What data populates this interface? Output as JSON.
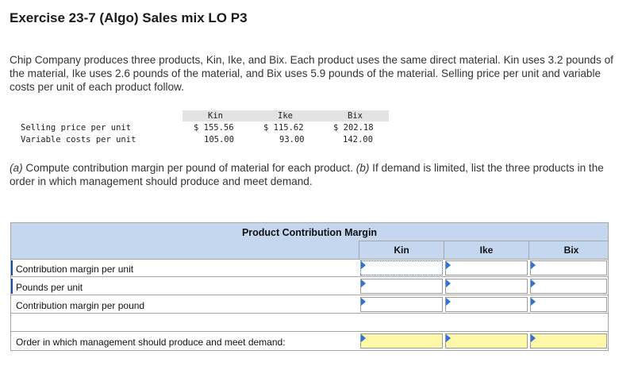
{
  "title": "Exercise 23-7 (Algo) Sales mix LO P3",
  "intro": "Chip Company produces three products, Kin, Ike, and Bix. Each product uses the same direct material. Kin uses 3.2 pounds of the material, Ike uses 2.6 pounds of the material, and Bix uses 5.9 pounds of the material. Selling price per unit and variable costs per unit of each product follow.",
  "data_table": {
    "headers": [
      "Kin",
      "Ike",
      "Bix"
    ],
    "rows": [
      {
        "label": "Selling price per unit",
        "values": [
          "$ 155.56",
          "$ 115.62",
          "$ 202.18"
        ]
      },
      {
        "label": "Variable costs per unit",
        "values": [
          "105.00",
          "93.00",
          "142.00"
        ]
      }
    ]
  },
  "question": {
    "a_tag": "(a)",
    "a_text": " Compute contribution margin per pound of material for each product. ",
    "b_tag": "(b)",
    "b_text": " If demand is limited, list the three products in the order in which management should produce and meet demand."
  },
  "answer_grid": {
    "title": "Product Contribution Margin",
    "columns": [
      "Kin",
      "Ike",
      "Bix"
    ],
    "rows": [
      {
        "label": "Contribution margin per unit",
        "values": [
          "",
          "",
          ""
        ]
      },
      {
        "label": "Pounds per unit",
        "values": [
          "",
          "",
          ""
        ]
      },
      {
        "label": "Contribution margin per pound",
        "values": [
          "",
          "",
          ""
        ]
      }
    ],
    "order_label": "Order in which management should produce and meet demand:",
    "order_values": [
      "",
      "",
      ""
    ],
    "colors": {
      "header_band": "#c5d6ef",
      "order_fill": "#fff7a8",
      "flag": "#2d74d9"
    }
  }
}
